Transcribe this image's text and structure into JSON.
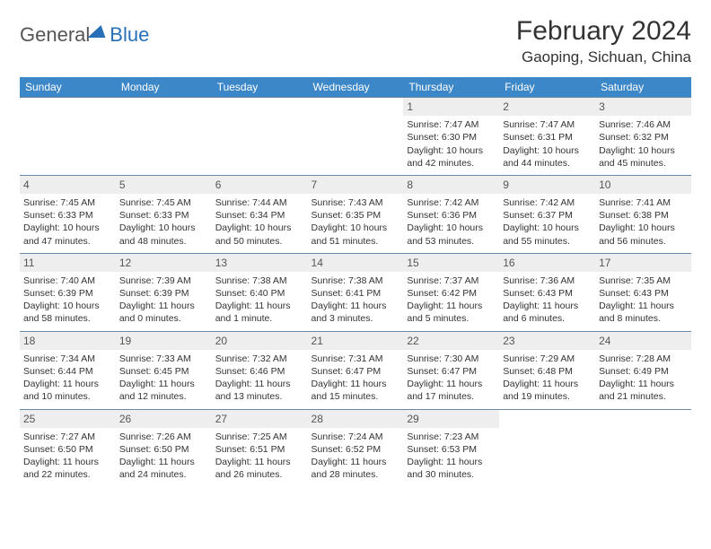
{
  "logo": {
    "part1": "General",
    "part2": "Blue"
  },
  "title": "February 2024",
  "location": "Gaoping, Sichuan, China",
  "weekdays": [
    "Sunday",
    "Monday",
    "Tuesday",
    "Wednesday",
    "Thursday",
    "Friday",
    "Saturday"
  ],
  "colors": {
    "header_bg": "#3c87c7",
    "header_text": "#ffffff",
    "daynum_bg": "#eeeeee",
    "border": "#6a8aa8",
    "text": "#333333",
    "logo_blue": "#2770b8"
  },
  "first_day_index": 4,
  "days": [
    {
      "n": 1,
      "sunrise": "7:47 AM",
      "sunset": "6:30 PM",
      "daylight": "10 hours and 42 minutes."
    },
    {
      "n": 2,
      "sunrise": "7:47 AM",
      "sunset": "6:31 PM",
      "daylight": "10 hours and 44 minutes."
    },
    {
      "n": 3,
      "sunrise": "7:46 AM",
      "sunset": "6:32 PM",
      "daylight": "10 hours and 45 minutes."
    },
    {
      "n": 4,
      "sunrise": "7:45 AM",
      "sunset": "6:33 PM",
      "daylight": "10 hours and 47 minutes."
    },
    {
      "n": 5,
      "sunrise": "7:45 AM",
      "sunset": "6:33 PM",
      "daylight": "10 hours and 48 minutes."
    },
    {
      "n": 6,
      "sunrise": "7:44 AM",
      "sunset": "6:34 PM",
      "daylight": "10 hours and 50 minutes."
    },
    {
      "n": 7,
      "sunrise": "7:43 AM",
      "sunset": "6:35 PM",
      "daylight": "10 hours and 51 minutes."
    },
    {
      "n": 8,
      "sunrise": "7:42 AM",
      "sunset": "6:36 PM",
      "daylight": "10 hours and 53 minutes."
    },
    {
      "n": 9,
      "sunrise": "7:42 AM",
      "sunset": "6:37 PM",
      "daylight": "10 hours and 55 minutes."
    },
    {
      "n": 10,
      "sunrise": "7:41 AM",
      "sunset": "6:38 PM",
      "daylight": "10 hours and 56 minutes."
    },
    {
      "n": 11,
      "sunrise": "7:40 AM",
      "sunset": "6:39 PM",
      "daylight": "10 hours and 58 minutes."
    },
    {
      "n": 12,
      "sunrise": "7:39 AM",
      "sunset": "6:39 PM",
      "daylight": "11 hours and 0 minutes."
    },
    {
      "n": 13,
      "sunrise": "7:38 AM",
      "sunset": "6:40 PM",
      "daylight": "11 hours and 1 minute."
    },
    {
      "n": 14,
      "sunrise": "7:38 AM",
      "sunset": "6:41 PM",
      "daylight": "11 hours and 3 minutes."
    },
    {
      "n": 15,
      "sunrise": "7:37 AM",
      "sunset": "6:42 PM",
      "daylight": "11 hours and 5 minutes."
    },
    {
      "n": 16,
      "sunrise": "7:36 AM",
      "sunset": "6:43 PM",
      "daylight": "11 hours and 6 minutes."
    },
    {
      "n": 17,
      "sunrise": "7:35 AM",
      "sunset": "6:43 PM",
      "daylight": "11 hours and 8 minutes."
    },
    {
      "n": 18,
      "sunrise": "7:34 AM",
      "sunset": "6:44 PM",
      "daylight": "11 hours and 10 minutes."
    },
    {
      "n": 19,
      "sunrise": "7:33 AM",
      "sunset": "6:45 PM",
      "daylight": "11 hours and 12 minutes."
    },
    {
      "n": 20,
      "sunrise": "7:32 AM",
      "sunset": "6:46 PM",
      "daylight": "11 hours and 13 minutes."
    },
    {
      "n": 21,
      "sunrise": "7:31 AM",
      "sunset": "6:47 PM",
      "daylight": "11 hours and 15 minutes."
    },
    {
      "n": 22,
      "sunrise": "7:30 AM",
      "sunset": "6:47 PM",
      "daylight": "11 hours and 17 minutes."
    },
    {
      "n": 23,
      "sunrise": "7:29 AM",
      "sunset": "6:48 PM",
      "daylight": "11 hours and 19 minutes."
    },
    {
      "n": 24,
      "sunrise": "7:28 AM",
      "sunset": "6:49 PM",
      "daylight": "11 hours and 21 minutes."
    },
    {
      "n": 25,
      "sunrise": "7:27 AM",
      "sunset": "6:50 PM",
      "daylight": "11 hours and 22 minutes."
    },
    {
      "n": 26,
      "sunrise": "7:26 AM",
      "sunset": "6:50 PM",
      "daylight": "11 hours and 24 minutes."
    },
    {
      "n": 27,
      "sunrise": "7:25 AM",
      "sunset": "6:51 PM",
      "daylight": "11 hours and 26 minutes."
    },
    {
      "n": 28,
      "sunrise": "7:24 AM",
      "sunset": "6:52 PM",
      "daylight": "11 hours and 28 minutes."
    },
    {
      "n": 29,
      "sunrise": "7:23 AM",
      "sunset": "6:53 PM",
      "daylight": "11 hours and 30 minutes."
    }
  ],
  "labels": {
    "sunrise": "Sunrise:",
    "sunset": "Sunset:",
    "daylight": "Daylight:"
  }
}
